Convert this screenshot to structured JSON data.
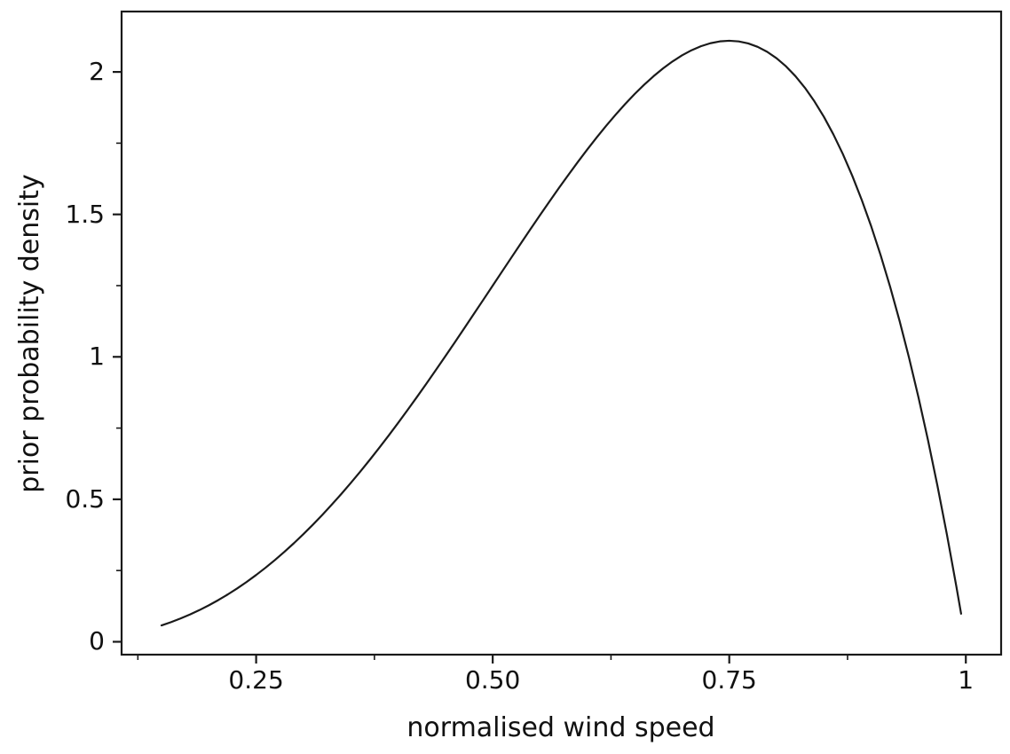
{
  "chart_data": {
    "type": "line",
    "title": "",
    "xlabel": "normalised wind speed",
    "ylabel": "prior probability density",
    "xlim": [
      0.1078,
      1.0373
    ],
    "ylim": [
      -0.0452,
      2.212
    ],
    "grid": false,
    "legend_position": "none",
    "axis_color": "#1a1a1a",
    "line_color": "#1a1a1a",
    "background_color": "#ffffff",
    "x_ticks": {
      "values": [
        0.25,
        0.5,
        0.75,
        1.0
      ],
      "labels": [
        "0.25",
        "0.50",
        "0.75",
        "1"
      ]
    },
    "x_minor_ticks": [
      0.125,
      0.375,
      0.625,
      0.875
    ],
    "y_ticks": {
      "values": [
        0,
        0.5,
        1.0,
        1.5,
        2.0
      ],
      "labels": [
        "0",
        "0.5",
        "1",
        "1.5",
        "2"
      ]
    },
    "y_minor_ticks": [
      0.25,
      0.75,
      1.25,
      1.75
    ],
    "series": [
      {
        "x": [
          0.15,
          0.16,
          0.17,
          0.18,
          0.19,
          0.2,
          0.21,
          0.22,
          0.23,
          0.24,
          0.25,
          0.26,
          0.27,
          0.28,
          0.29,
          0.3,
          0.31,
          0.32,
          0.33,
          0.34,
          0.35,
          0.36,
          0.37,
          0.38,
          0.39,
          0.4,
          0.41,
          0.42,
          0.43,
          0.44,
          0.45,
          0.46,
          0.47,
          0.48,
          0.49,
          0.5,
          0.51,
          0.52,
          0.53,
          0.54,
          0.55,
          0.56,
          0.57,
          0.58,
          0.59,
          0.6,
          0.61,
          0.62,
          0.63,
          0.64,
          0.65,
          0.66,
          0.67,
          0.68,
          0.69,
          0.7,
          0.71,
          0.72,
          0.73,
          0.74,
          0.75,
          0.76,
          0.77,
          0.78,
          0.79,
          0.8,
          0.81,
          0.82,
          0.83,
          0.84,
          0.85,
          0.86,
          0.87,
          0.88,
          0.89,
          0.9,
          0.91,
          0.92,
          0.93,
          0.94,
          0.95,
          0.96,
          0.97,
          0.98,
          0.99,
          0.995
        ],
        "y": [
          0.0574,
          0.0688,
          0.0816,
          0.0956,
          0.1111,
          0.128,
          0.1463,
          0.1661,
          0.1874,
          0.2101,
          0.2344,
          0.2601,
          0.2874,
          0.3161,
          0.3463,
          0.378,
          0.4111,
          0.4456,
          0.4816,
          0.5188,
          0.5574,
          0.5972,
          0.6382,
          0.6804,
          0.7237,
          0.768,
          0.8133,
          0.8594,
          0.9064,
          0.9541,
          1.0024,
          1.0512,
          1.1005,
          1.1502,
          1.2,
          1.25,
          1.3,
          1.3498,
          1.3994,
          1.4487,
          1.4974,
          1.5454,
          1.5927,
          1.6389,
          1.6841,
          1.728,
          1.7705,
          1.8113,
          1.8503,
          1.8874,
          1.9224,
          1.955,
          1.985,
          2.0124,
          2.0368,
          2.058,
          2.0759,
          2.0902,
          2.1007,
          2.1072,
          2.1094,
          2.1071,
          2.1001,
          2.088,
          2.0708,
          2.048,
          2.0195,
          1.9849,
          1.9441,
          1.8967,
          1.8424,
          1.781,
          1.7121,
          1.6355,
          1.5509,
          1.458,
          1.3564,
          1.2459,
          1.1261,
          0.9967,
          0.8574,
          0.7078,
          0.5476,
          0.3765,
          0.1941,
          0.0985
        ]
      }
    ],
    "peak": {
      "x": 0.75,
      "y": 2.11
    }
  }
}
